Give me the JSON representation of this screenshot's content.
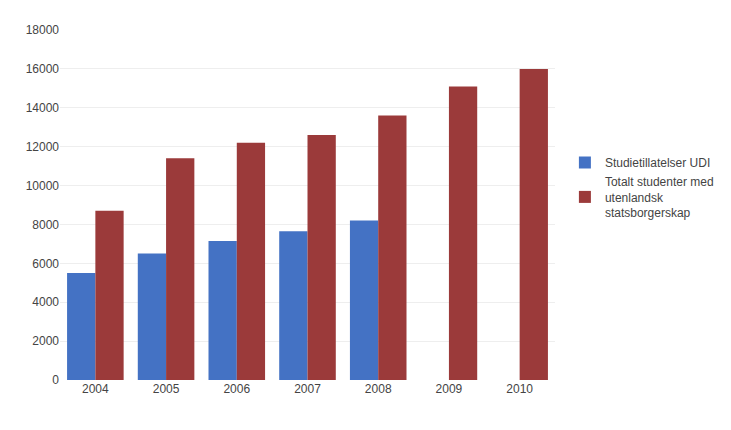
{
  "chart_data": {
    "type": "bar",
    "categories": [
      "2004",
      "2005",
      "2006",
      "2007",
      "2008",
      "2009",
      "2010"
    ],
    "series": [
      {
        "name": "Studietillatelser UDI",
        "color": "#4472C4",
        "values": [
          5500,
          6500,
          7150,
          7650,
          8200,
          null,
          null
        ]
      },
      {
        "name": "Totalt studenter med\nutenlandsk\nstatsborgerskap",
        "color": "#9B3A3A",
        "values": [
          8700,
          11400,
          12200,
          12600,
          13600,
          15100,
          16000
        ]
      }
    ],
    "ylim": [
      0,
      18000
    ],
    "yticks": [
      0,
      2000,
      4000,
      6000,
      8000,
      10000,
      12000,
      14000,
      16000,
      18000
    ],
    "grid": true,
    "legend": "right"
  }
}
